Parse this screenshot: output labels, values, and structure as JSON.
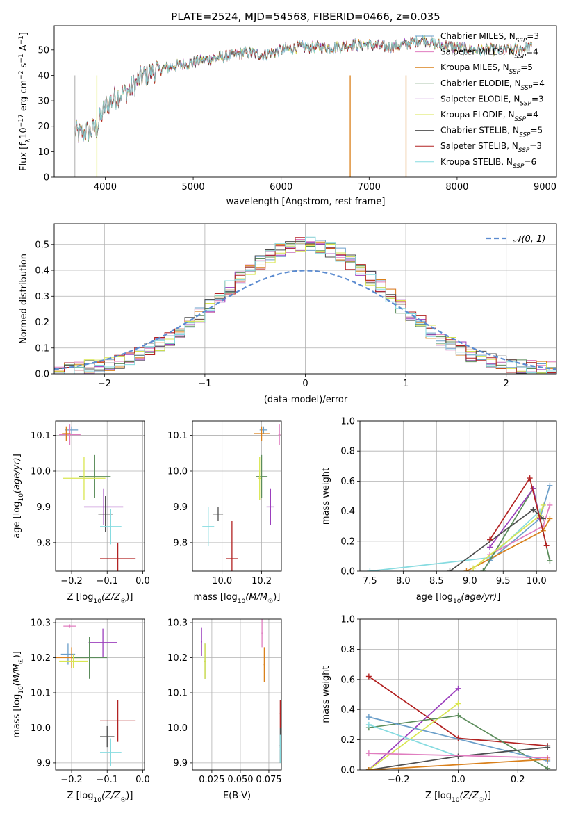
{
  "title": "PLATE=2524, MJD=54568, FIBERID=0466, z=0.035",
  "chart_data": [
    {
      "type": "line",
      "name": "spectrum",
      "xlabel": "wavelength [Angstrom, rest frame]",
      "xlim": [
        3420,
        9130
      ],
      "ylim": [
        0,
        59.5
      ],
      "xticks": [
        4000,
        5000,
        6000,
        7000,
        8000,
        9000
      ],
      "yticks": [
        0,
        10,
        20,
        30,
        40,
        50
      ],
      "grid": false,
      "legend": "right",
      "legend_entries": [
        {
          "label": "Chabrier MILES, N",
          "sub": "SSP",
          "tail": "=3",
          "color": "#6a9ec9"
        },
        {
          "label": "Salpeter MILES, N",
          "sub": "SSP",
          "tail": "=4",
          "color": "#e07dbf"
        },
        {
          "label": "Kroupa MILES, N",
          "sub": "SSP",
          "tail": "=5",
          "color": "#d9801b"
        },
        {
          "label": "Chabrier ELODIE, N",
          "sub": "SSP",
          "tail": "=4",
          "color": "#5b8c5b"
        },
        {
          "label": "Salpeter ELODIE, N",
          "sub": "SSP",
          "tail": "=3",
          "color": "#9b3fbd"
        },
        {
          "label": "Kroupa ELODIE, N",
          "sub": "SSP",
          "tail": "=4",
          "color": "#d9e650"
        },
        {
          "label": "Chabrier STELIB, N",
          "sub": "SSP",
          "tail": "=5",
          "color": "#4d4d4d"
        },
        {
          "label": "Salpeter STELIB, N",
          "sub": "SSP",
          "tail": "=3",
          "color": "#b22222"
        },
        {
          "label": "Kroupa STELIB, N",
          "sub": "SSP",
          "tail": "=6",
          "color": "#86dbe0"
        }
      ],
      "continuum": {
        "x": [
          3650,
          3700,
          3800,
          3900,
          4000,
          4100,
          4200,
          4300,
          4400,
          4500,
          4700,
          5000,
          5300,
          5600,
          5800,
          6000,
          6200,
          6400,
          6600,
          6800,
          7000,
          7200,
          7400,
          7600,
          7800,
          8000,
          8200,
          8400,
          8600,
          8850
        ],
        "y": [
          18,
          17,
          18,
          19,
          28,
          31,
          33,
          35,
          39,
          41,
          43,
          45,
          47,
          49,
          48,
          50,
          51,
          51,
          51,
          52,
          52,
          51,
          52,
          54,
          52,
          51,
          50,
          50,
          50,
          51
        ]
      }
    },
    {
      "type": "histogram",
      "name": "residuals",
      "xlabel": "(data-model)/error",
      "ylabel": "Normed distribution",
      "xlim": [
        -2.5,
        2.5
      ],
      "ylim": [
        0,
        0.58
      ],
      "xticks": [
        -2,
        -1,
        0,
        1,
        2
      ],
      "yticks": [
        0.0,
        0.1,
        0.2,
        0.3,
        0.4,
        0.5
      ],
      "grid": true,
      "legend": "top-right",
      "reference": {
        "label": "𝒩(0, 1)",
        "mean": 0,
        "sigma": 1,
        "color": "#5b8bd0"
      },
      "bin_width": 0.1,
      "envelope_sigma": 0.82,
      "envelope_peak": 0.49
    },
    {
      "type": "errorbar",
      "name": "age-vs-Z",
      "ylim": [
        9.72,
        10.14
      ],
      "xlim": [
        -0.245,
        0.005
      ],
      "xticks": [
        -0.2,
        -0.1,
        0.0
      ],
      "yticks": [
        9.8,
        9.9,
        10.0,
        10.1
      ],
      "grid": true,
      "points": [
        {
          "x": -0.2,
          "xerr": 0.018,
          "y": 10.115,
          "yerr": 0.01,
          "color": "#6a9ec9"
        },
        {
          "x": -0.205,
          "xerr": 0.03,
          "y": 10.102,
          "yerr": 0.03,
          "color": "#e07dbf"
        },
        {
          "x": -0.215,
          "xerr": 0.012,
          "y": 10.105,
          "yerr": 0.02,
          "color": "#d9801b"
        },
        {
          "x": -0.135,
          "xerr": 0.045,
          "y": 9.985,
          "yerr": 0.06,
          "color": "#5b8c5b"
        },
        {
          "x": -0.11,
          "xerr": 0.055,
          "y": 9.9,
          "yerr": 0.05,
          "color": "#9b3fbd"
        },
        {
          "x": -0.165,
          "xerr": 0.06,
          "y": 9.98,
          "yerr": 0.06,
          "color": "#d9e650"
        },
        {
          "x": -0.105,
          "xerr": 0.02,
          "y": 9.88,
          "yerr": 0.05,
          "color": "#4d4d4d"
        },
        {
          "x": -0.07,
          "xerr": 0.05,
          "y": 9.755,
          "yerr": 0.045,
          "color": "#b22222"
        },
        {
          "x": -0.09,
          "xerr": 0.03,
          "y": 9.845,
          "yerr": 0.05,
          "color": "#86dbe0"
        }
      ]
    },
    {
      "type": "errorbar",
      "name": "age-vs-mass",
      "xlim": [
        9.85,
        10.3
      ],
      "ylim": [
        9.72,
        10.14
      ],
      "xticks": [
        10.0,
        10.2
      ],
      "grid": true,
      "points": [
        {
          "x": 10.21,
          "xerr": 0.02,
          "y": 10.115,
          "yerr": 0.01,
          "color": "#6a9ec9"
        },
        {
          "x": 10.29,
          "xerr": 0.005,
          "y": 10.102,
          "yerr": 0.03,
          "color": "#e07dbf"
        },
        {
          "x": 10.2,
          "xerr": 0.04,
          "y": 10.105,
          "yerr": 0.02,
          "color": "#d9801b"
        },
        {
          "x": 10.2,
          "xerr": 0.03,
          "y": 9.985,
          "yerr": 0.06,
          "color": "#5b8c5b"
        },
        {
          "x": 10.245,
          "xerr": 0.02,
          "y": 9.9,
          "yerr": 0.05,
          "color": "#9b3fbd"
        },
        {
          "x": 10.19,
          "xerr": 0.005,
          "y": 9.98,
          "yerr": 0.06,
          "color": "#d9e650"
        },
        {
          "x": 9.98,
          "xerr": 0.025,
          "y": 9.88,
          "yerr": 0.02,
          "color": "#4d4d4d"
        },
        {
          "x": 10.05,
          "xerr": 0.03,
          "y": 9.755,
          "yerr": 0.105,
          "color": "#b22222"
        },
        {
          "x": 9.93,
          "xerr": 0.03,
          "y": 9.845,
          "yerr": 0.055,
          "color": "#86dbe0"
        }
      ]
    },
    {
      "type": "line",
      "name": "mass-weight-vs-age",
      "xlabel": "age  [log₁₀(age/yr)]",
      "ylabel": "mass weight",
      "xlim": [
        7.35,
        10.3
      ],
      "ylim": [
        0,
        1.0
      ],
      "xticks": [
        7.5,
        8.0,
        8.5,
        9.0,
        9.5,
        10.0
      ],
      "yticks": [
        0.0,
        0.2,
        0.4,
        0.6,
        0.8,
        1.0
      ],
      "grid": true,
      "series": [
        {
          "color": "#86dbe0",
          "x": [
            7.5,
            9.3,
            10.05
          ],
          "y": [
            0.0,
            0.09,
            0.4
          ]
        },
        {
          "color": "#6a9ec9",
          "x": [
            9.3,
            10.05,
            10.2
          ],
          "y": [
            0.07,
            0.35,
            0.57
          ]
        },
        {
          "color": "#e07dbf",
          "x": [
            9.3,
            10.1,
            10.2
          ],
          "y": [
            0.11,
            0.3,
            0.44
          ]
        },
        {
          "color": "#d9801b",
          "x": [
            8.95,
            10.1,
            10.2
          ],
          "y": [
            0.0,
            0.27,
            0.35
          ]
        },
        {
          "color": "#5b8c5b",
          "x": [
            9.2,
            9.95,
            10.2
          ],
          "y": [
            0.0,
            0.55,
            0.07
          ]
        },
        {
          "color": "#9b3fbd",
          "x": [
            9.3,
            9.95,
            10.05
          ],
          "y": [
            0.16,
            0.55,
            0.35
          ]
        },
        {
          "color": "#d9e650",
          "x": [
            9.05,
            10.05,
            10.1
          ],
          "y": [
            0.02,
            0.37,
            0.44
          ]
        },
        {
          "color": "#4d4d4d",
          "x": [
            8.7,
            9.95,
            10.1
          ],
          "y": [
            0.0,
            0.41,
            0.35
          ]
        },
        {
          "color": "#b22222",
          "x": [
            9.3,
            9.9,
            10.15
          ],
          "y": [
            0.21,
            0.62,
            0.17
          ]
        }
      ]
    },
    {
      "type": "errorbar",
      "name": "mass-vs-Z",
      "ylabel": "mass [log₁₀(M/M☉)]",
      "xlim": [
        -0.245,
        0.005
      ],
      "ylim": [
        9.88,
        10.31
      ],
      "xticks": [
        -0.2,
        -0.1,
        0.0
      ],
      "yticks": [
        9.9,
        10.0,
        10.1,
        10.2,
        10.3
      ],
      "grid": true,
      "points": [
        {
          "x": -0.205,
          "xerr": 0.018,
          "y": 10.29,
          "yerr": 0.005,
          "color": "#e07dbf"
        },
        {
          "x": -0.112,
          "xerr": 0.04,
          "y": 10.243,
          "yerr": 0.04,
          "color": "#9b3fbd"
        },
        {
          "x": -0.21,
          "xerr": 0.02,
          "y": 10.21,
          "yerr": 0.03,
          "color": "#6a9ec9"
        },
        {
          "x": -0.2,
          "xerr": 0.045,
          "y": 10.2,
          "yerr": 0.03,
          "color": "#d9801b"
        },
        {
          "x": -0.15,
          "xerr": 0.05,
          "y": 10.2,
          "yerr": 0.06,
          "color": "#5b8c5b"
        },
        {
          "x": -0.195,
          "xerr": 0.04,
          "y": 10.19,
          "yerr": 0.02,
          "color": "#d9e650"
        },
        {
          "x": -0.07,
          "xerr": 0.05,
          "y": 10.02,
          "yerr": 0.06,
          "color": "#b22222"
        },
        {
          "x": -0.1,
          "xerr": 0.02,
          "y": 9.975,
          "yerr": 0.03,
          "color": "#4d4d4d"
        },
        {
          "x": -0.09,
          "xerr": 0.03,
          "y": 9.93,
          "yerr": 0.04,
          "color": "#86dbe0"
        }
      ]
    },
    {
      "type": "errorbar",
      "name": "mass-vs-EBV",
      "xlabel": "E(B-V)",
      "xlim": [
        0.008,
        0.086
      ],
      "ylim": [
        9.88,
        10.31
      ],
      "xticks": [
        0.025,
        0.05,
        0.075
      ],
      "grid": true,
      "points": [
        {
          "x": 0.016,
          "xerr": 0.0005,
          "y": 10.245,
          "yerr": 0.04,
          "color": "#9b3fbd"
        },
        {
          "x": 0.019,
          "xerr": 0.0005,
          "y": 10.19,
          "yerr": 0.05,
          "color": "#5b8c5b"
        },
        {
          "x": 0.019,
          "xerr": 0.0005,
          "y": 10.19,
          "yerr": 0.05,
          "color": "#d9e650"
        },
        {
          "x": 0.069,
          "xerr": 0.0005,
          "y": 10.27,
          "yerr": 0.04,
          "color": "#e07dbf"
        },
        {
          "x": 0.071,
          "xerr": 0.0005,
          "y": 10.18,
          "yerr": 0.05,
          "color": "#d9801b"
        },
        {
          "x": 0.085,
          "xerr": 0.0005,
          "y": 10.04,
          "yerr": 0.04,
          "color": "#b22222"
        },
        {
          "x": 0.085,
          "xerr": 0.0005,
          "y": 9.95,
          "yerr": 0.05,
          "color": "#4d4d4d"
        },
        {
          "x": 0.085,
          "xerr": 0.0005,
          "y": 9.94,
          "yerr": 0.04,
          "color": "#86dbe0"
        }
      ]
    },
    {
      "type": "line",
      "name": "mass-weight-vs-Z",
      "xlabel": "Z [log₁₀(Z/Z☉)]",
      "ylabel": "mass weight",
      "xlim": [
        -0.33,
        0.33
      ],
      "ylim": [
        0,
        1.0
      ],
      "xticks": [
        -0.2,
        0.0,
        0.2
      ],
      "yticks": [
        0.0,
        0.2,
        0.4,
        0.6,
        0.8,
        1.0
      ],
      "grid": true,
      "series": [
        {
          "color": "#b22222",
          "x": [
            -0.3,
            0.0,
            0.3
          ],
          "y": [
            0.62,
            0.21,
            0.16
          ]
        },
        {
          "color": "#9b3fbd",
          "x": [
            -0.3,
            0.0
          ],
          "y": [
            0.0,
            0.54
          ]
        },
        {
          "color": "#d9e650",
          "x": [
            -0.3,
            0.0
          ],
          "y": [
            0.0,
            0.44
          ]
        },
        {
          "color": "#5b8c5b",
          "x": [
            -0.3,
            0.0,
            0.3
          ],
          "y": [
            0.28,
            0.36,
            0.01
          ]
        },
        {
          "color": "#6a9ec9",
          "x": [
            -0.3,
            0.3
          ],
          "y": [
            0.35,
            0.06
          ]
        },
        {
          "color": "#86dbe0",
          "x": [
            -0.3,
            0.0,
            0.3
          ],
          "y": [
            0.3,
            0.09,
            0.15
          ]
        },
        {
          "color": "#4d4d4d",
          "x": [
            -0.3,
            0.0,
            0.3
          ],
          "y": [
            0.0,
            0.09,
            0.15
          ]
        },
        {
          "color": "#e07dbf",
          "x": [
            -0.3,
            0.3
          ],
          "y": [
            0.11,
            0.08
          ]
        },
        {
          "color": "#d9801b",
          "x": [
            -0.3,
            0.3
          ],
          "y": [
            0.0,
            0.07
          ]
        }
      ]
    }
  ]
}
